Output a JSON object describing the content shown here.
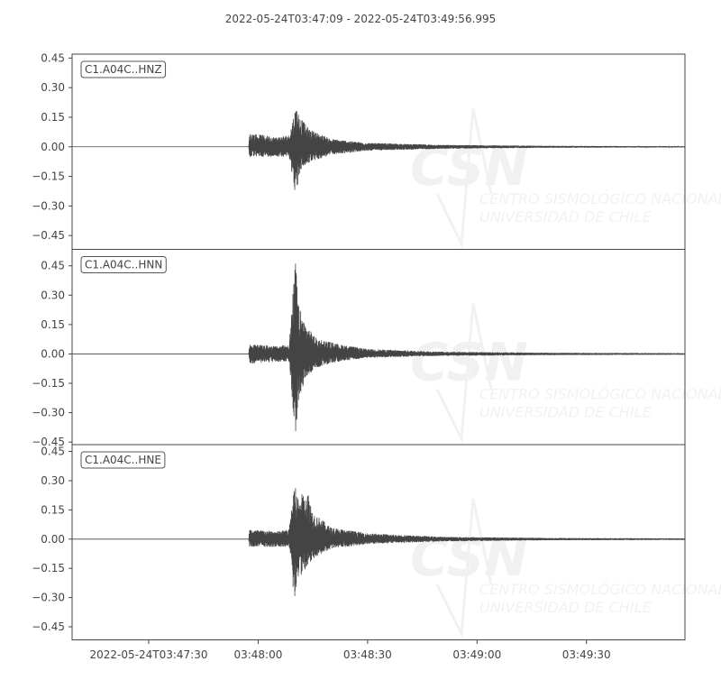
{
  "chart_data": {
    "type": "line",
    "title": "2022-05-24T03:47:09  -  2022-05-24T03:49:56.995",
    "xlim": [
      "2022-05-24T03:47:09",
      "2022-05-24T03:49:56.995"
    ],
    "x_ticks": [
      {
        "time": "03:47:30",
        "label": "2022-05-24T03:47:30"
      },
      {
        "time": "03:48:00",
        "label": "03:48:00"
      },
      {
        "time": "03:48:30",
        "label": "03:48:30"
      },
      {
        "time": "03:49:00",
        "label": "03:49:00"
      },
      {
        "time": "03:49:30",
        "label": "03:49:30"
      }
    ],
    "y_ticks": [
      0.45,
      0.3,
      0.15,
      0.0,
      -0.15,
      -0.3,
      -0.45
    ],
    "y_tick_labels": [
      "0.45",
      "0.30",
      "0.15",
      "0.00",
      "−0.15",
      "−0.30",
      "−0.45"
    ],
    "grid": false,
    "trace_color": "#444444",
    "watermark": {
      "logo": "CSN",
      "line1": "CENTRO SISMOLÓGICO NACIONAL",
      "line2": "UNIVERSIDAD DE CHILE"
    },
    "series": [
      {
        "name": "C1.A04C..HNZ",
        "ylim": [
          -0.52,
          0.47
        ],
        "envelope_columns": [
          "time",
          "max",
          "min"
        ],
        "envelope": [
          [
            "03:47:09",
            0,
            0
          ],
          [
            "03:47:57.4",
            0,
            0
          ],
          [
            "03:47:57.6",
            0.06,
            -0.06
          ],
          [
            "03:47:58",
            0.07,
            -0.05
          ],
          [
            "03:48:05",
            0.05,
            -0.05
          ],
          [
            "03:48:08.5",
            0.06,
            -0.05
          ],
          [
            "03:48:10.4",
            0.21,
            -0.26
          ],
          [
            "03:48:11.5",
            0.15,
            -0.12
          ],
          [
            "03:48:14",
            0.09,
            -0.08
          ],
          [
            "03:48:20",
            0.04,
            -0.04
          ],
          [
            "03:48:30",
            0.02,
            -0.02
          ],
          [
            "03:48:50",
            0.01,
            -0.01
          ],
          [
            "03:49:20",
            0.005,
            -0.005
          ],
          [
            "03:49:56.995",
            0.003,
            -0.003
          ]
        ]
      },
      {
        "name": "C1.A04C..HNN",
        "ylim": [
          -0.463,
          0.534
        ],
        "envelope_columns": [
          "time",
          "max",
          "min"
        ],
        "envelope": [
          [
            "03:47:09",
            0,
            0
          ],
          [
            "03:47:57.4",
            0,
            0
          ],
          [
            "03:47:57.6",
            0.05,
            -0.05
          ],
          [
            "03:48:05",
            0.04,
            -0.04
          ],
          [
            "03:48:08.5",
            0.05,
            -0.04
          ],
          [
            "03:48:09.6",
            0.33,
            -0.3
          ],
          [
            "03:48:10.3",
            0.49,
            -0.42
          ],
          [
            "03:48:11",
            0.25,
            -0.25
          ],
          [
            "03:48:13",
            0.15,
            -0.12
          ],
          [
            "03:48:16",
            0.08,
            -0.07
          ],
          [
            "03:48:22",
            0.05,
            -0.04
          ],
          [
            "03:48:30",
            0.025,
            -0.02
          ],
          [
            "03:48:50",
            0.012,
            -0.01
          ],
          [
            "03:49:20",
            0.006,
            -0.006
          ],
          [
            "03:49:56.995",
            0.004,
            -0.004
          ]
        ]
      },
      {
        "name": "C1.A04C..HNE",
        "ylim": [
          -0.517,
          0.485
        ],
        "envelope_columns": [
          "time",
          "max",
          "min"
        ],
        "envelope": [
          [
            "03:47:09",
            0,
            0
          ],
          [
            "03:47:57.4",
            0,
            0
          ],
          [
            "03:47:57.6",
            0.05,
            -0.04
          ],
          [
            "03:48:05",
            0.04,
            -0.04
          ],
          [
            "03:48:08.5",
            0.05,
            -0.04
          ],
          [
            "03:48:09.8",
            0.29,
            -0.32
          ],
          [
            "03:48:11",
            0.22,
            -0.2
          ],
          [
            "03:48:13.6",
            0.25,
            -0.15
          ],
          [
            "03:48:15",
            0.14,
            -0.1
          ],
          [
            "03:48:20",
            0.06,
            -0.05
          ],
          [
            "03:48:30",
            0.03,
            -0.025
          ],
          [
            "03:48:50",
            0.012,
            -0.012
          ],
          [
            "03:49:20",
            0.006,
            -0.006
          ],
          [
            "03:49:56.995",
            0.004,
            -0.004
          ]
        ]
      }
    ]
  }
}
